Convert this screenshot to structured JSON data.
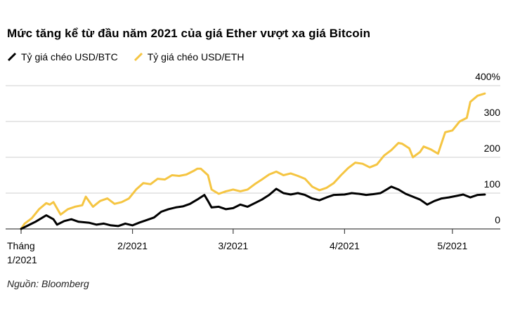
{
  "title": "Mức tăng kể từ đầu năm 2021 của giá Ether vượt xa giá Bitcoin",
  "source": "Nguồn: Bloomberg",
  "colors": {
    "btc": "#000000",
    "eth": "#f5c542",
    "grid": "#cfcfcf",
    "axis": "#444444"
  },
  "chart_data": {
    "type": "line",
    "title": "Mức tăng kể từ đầu năm 2021 của giá Ether vượt xa giá Bitcoin",
    "ylim": [
      0,
      400
    ],
    "xlim": [
      "2021-01-01",
      "2021-05-11"
    ],
    "y_ticks": [
      {
        "value": 0,
        "label": "0"
      },
      {
        "value": 100,
        "label": "100"
      },
      {
        "value": 200,
        "label": "200"
      },
      {
        "value": 300,
        "label": "300"
      },
      {
        "value": 400,
        "label": "400%"
      }
    ],
    "x_ticks": [
      {
        "date": "2021-01-01",
        "label": [
          "Tháng",
          "1/2021"
        ]
      },
      {
        "date": "2021-02-01",
        "label": [
          "2/2021"
        ]
      },
      {
        "date": "2021-03-01",
        "label": [
          "3/2021"
        ]
      },
      {
        "date": "2021-04-01",
        "label": [
          "4/2021"
        ]
      },
      {
        "date": "2021-05-01",
        "label": [
          "5/2021"
        ]
      }
    ],
    "grid": true,
    "legend_position": "top-left",
    "series": [
      {
        "name": "Tỷ giá chéo USD/BTC",
        "color": "#000000",
        "points": [
          [
            "2021-01-01",
            0
          ],
          [
            "2021-01-03",
            10
          ],
          [
            "2021-01-05",
            20
          ],
          [
            "2021-01-07",
            32
          ],
          [
            "2021-01-08",
            38
          ],
          [
            "2021-01-10",
            27
          ],
          [
            "2021-01-11",
            12
          ],
          [
            "2021-01-13",
            22
          ],
          [
            "2021-01-15",
            27
          ],
          [
            "2021-01-17",
            20
          ],
          [
            "2021-01-20",
            17
          ],
          [
            "2021-01-22",
            12
          ],
          [
            "2021-01-24",
            15
          ],
          [
            "2021-01-26",
            10
          ],
          [
            "2021-01-28",
            8
          ],
          [
            "2021-01-30",
            15
          ],
          [
            "2021-02-01",
            10
          ],
          [
            "2021-02-03",
            18
          ],
          [
            "2021-02-05",
            25
          ],
          [
            "2021-02-07",
            32
          ],
          [
            "2021-02-09",
            48
          ],
          [
            "2021-02-11",
            55
          ],
          [
            "2021-02-13",
            60
          ],
          [
            "2021-02-15",
            63
          ],
          [
            "2021-02-17",
            70
          ],
          [
            "2021-02-19",
            82
          ],
          [
            "2021-02-21 ",
            95
          ],
          [
            "2021-02-22",
            78
          ],
          [
            "2021-02-23",
            60
          ],
          [
            "2021-02-25",
            62
          ],
          [
            "2021-02-27",
            55
          ],
          [
            "2021-03-01",
            58
          ],
          [
            "2021-03-03",
            68
          ],
          [
            "2021-03-05",
            62
          ],
          [
            "2021-03-07",
            72
          ],
          [
            "2021-03-09",
            82
          ],
          [
            "2021-03-11",
            95
          ],
          [
            "2021-03-13",
            112
          ],
          [
            "2021-03-15",
            100
          ],
          [
            "2021-03-17",
            96
          ],
          [
            "2021-03-19",
            100
          ],
          [
            "2021-03-21",
            95
          ],
          [
            "2021-03-23",
            85
          ],
          [
            "2021-03-25",
            80
          ],
          [
            "2021-03-27",
            88
          ],
          [
            "2021-03-29",
            95
          ],
          [
            "2021-04-01",
            96
          ],
          [
            "2021-04-03",
            100
          ],
          [
            "2021-04-05",
            98
          ],
          [
            "2021-04-07",
            95
          ],
          [
            "2021-04-09",
            97
          ],
          [
            "2021-04-11",
            100
          ],
          [
            "2021-04-13",
            112
          ],
          [
            "2021-04-14",
            118
          ],
          [
            "2021-04-16",
            110
          ],
          [
            "2021-04-18",
            98
          ],
          [
            "2021-04-20",
            90
          ],
          [
            "2021-04-22",
            82
          ],
          [
            "2021-04-24",
            68
          ],
          [
            "2021-04-26",
            78
          ],
          [
            "2021-04-28",
            85
          ],
          [
            "2021-04-30",
            88
          ],
          [
            "2021-05-02",
            92
          ],
          [
            "2021-05-04",
            96
          ],
          [
            "2021-05-06",
            88
          ],
          [
            "2021-05-08",
            95
          ],
          [
            "2021-05-10",
            96
          ]
        ]
      },
      {
        "name": "Tỷ giá chéo USD/ETH",
        "color": "#f5c542",
        "points": [
          [
            "2021-01-01",
            0
          ],
          [
            "2021-01-02",
            15
          ],
          [
            "2021-01-04",
            30
          ],
          [
            "2021-01-06",
            55
          ],
          [
            "2021-01-08",
            72
          ],
          [
            "2021-01-09",
            68
          ],
          [
            "2021-01-10",
            75
          ],
          [
            "2021-01-12",
            40
          ],
          [
            "2021-01-14",
            55
          ],
          [
            "2021-01-16",
            62
          ],
          [
            "2021-01-18",
            66
          ],
          [
            "2021-01-19",
            90
          ],
          [
            "2021-01-21",
            62
          ],
          [
            "2021-01-23",
            78
          ],
          [
            "2021-01-25",
            85
          ],
          [
            "2021-01-27",
            70
          ],
          [
            "2021-01-29",
            75
          ],
          [
            "2021-01-31",
            85
          ],
          [
            "2021-02-02",
            110
          ],
          [
            "2021-02-04",
            128
          ],
          [
            "2021-02-06",
            125
          ],
          [
            "2021-02-08",
            140
          ],
          [
            "2021-02-10",
            138
          ],
          [
            "2021-02-12",
            150
          ],
          [
            "2021-02-14",
            148
          ],
          [
            "2021-02-16",
            152
          ],
          [
            "2021-02-18",
            162
          ],
          [
            "2021-02-19",
            168
          ],
          [
            "2021-02-20",
            168
          ],
          [
            "2021-02-22",
            150
          ],
          [
            "2021-02-23",
            110
          ],
          [
            "2021-02-25",
            98
          ],
          [
            "2021-02-27",
            105
          ],
          [
            "2021-03-01",
            110
          ],
          [
            "2021-03-03",
            105
          ],
          [
            "2021-03-05",
            110
          ],
          [
            "2021-03-07",
            125
          ],
          [
            "2021-03-09",
            138
          ],
          [
            "2021-03-11",
            152
          ],
          [
            "2021-03-13",
            160
          ],
          [
            "2021-03-15",
            150
          ],
          [
            "2021-03-17",
            155
          ],
          [
            "2021-03-19",
            148
          ],
          [
            "2021-03-21",
            140
          ],
          [
            "2021-03-23",
            118
          ],
          [
            "2021-03-25",
            108
          ],
          [
            "2021-03-27",
            115
          ],
          [
            "2021-03-29",
            128
          ],
          [
            "2021-03-31",
            150
          ],
          [
            "2021-04-02",
            170
          ],
          [
            "2021-04-04",
            185
          ],
          [
            "2021-04-06",
            182
          ],
          [
            "2021-04-08",
            172
          ],
          [
            "2021-04-10",
            180
          ],
          [
            "2021-04-12",
            205
          ],
          [
            "2021-04-14",
            220
          ],
          [
            "2021-04-16",
            240
          ],
          [
            "2021-04-17",
            238
          ],
          [
            "2021-04-19",
            225
          ],
          [
            "2021-04-20",
            200
          ],
          [
            "2021-04-22",
            215
          ],
          [
            "2021-04-23",
            230
          ],
          [
            "2021-04-25",
            222
          ],
          [
            "2021-04-27",
            210
          ],
          [
            "2021-04-29",
            270
          ],
          [
            "2021-05-01",
            275
          ],
          [
            "2021-05-03",
            300
          ],
          [
            "2021-05-05",
            310
          ],
          [
            "2021-05-06",
            355
          ],
          [
            "2021-05-08",
            372
          ],
          [
            "2021-05-10",
            378
          ]
        ]
      }
    ]
  }
}
